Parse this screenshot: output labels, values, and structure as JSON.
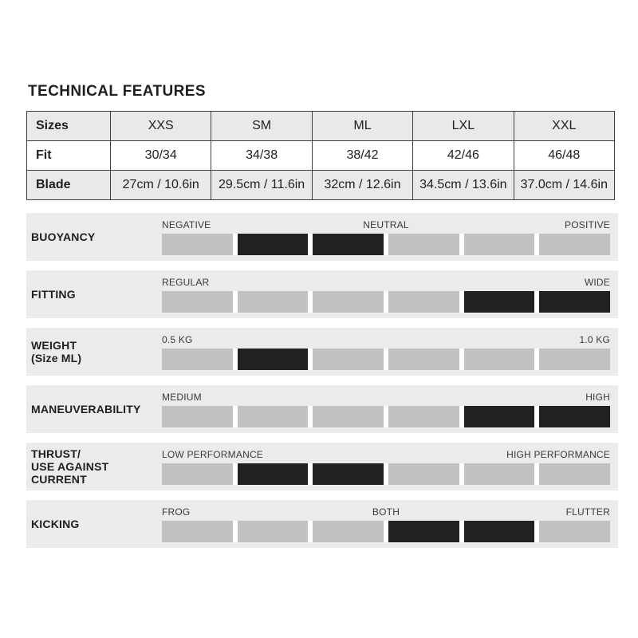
{
  "page_title": "TECHNICAL FEATURES",
  "colors": {
    "band_bg": "#ebebec",
    "table_shaded_bg": "#e9e9ea",
    "segment_gray": "#c1c1c3",
    "segment_black": "#232021",
    "border": "#3f3f41",
    "text": "#232021",
    "scale_label": "#3a3a3c"
  },
  "size_table": {
    "rows": [
      {
        "label": "Sizes",
        "shaded": true,
        "values": [
          "XXS",
          "SM",
          "ML",
          "LXL",
          "XXL"
        ]
      },
      {
        "label": "Fit",
        "shaded": false,
        "values": [
          "30/34",
          "34/38",
          "38/42",
          "42/46",
          "46/48"
        ]
      },
      {
        "label": "Blade",
        "shaded": true,
        "values": [
          "27cm / 10.6in",
          "29.5cm / 11.6in",
          "32cm / 12.6in",
          "34.5cm / 13.6in",
          "37.0cm / 14.6in"
        ]
      }
    ]
  },
  "features": [
    {
      "name_lines": [
        "BUOYANCY"
      ],
      "scale": {
        "left": "NEGATIVE",
        "center": "NEUTRAL",
        "right": "POSITIVE"
      },
      "segments_total": 6,
      "filled_segments": [
        2,
        3
      ]
    },
    {
      "name_lines": [
        "FITTING"
      ],
      "scale": {
        "left": "REGULAR",
        "center": "",
        "right": "WIDE"
      },
      "segments_total": 6,
      "filled_segments": [
        5,
        6
      ]
    },
    {
      "name_lines": [
        "WEIGHT",
        "(Size ML)"
      ],
      "scale": {
        "left": "0.5 KG",
        "center": "",
        "right": "1.0 KG"
      },
      "segments_total": 6,
      "filled_segments": [
        2
      ]
    },
    {
      "name_lines": [
        "MANEUVERABILITY"
      ],
      "scale": {
        "left": "MEDIUM",
        "center": "",
        "right": "HIGH"
      },
      "segments_total": 6,
      "filled_segments": [
        5,
        6
      ]
    },
    {
      "name_lines": [
        "THRUST/",
        "USE AGAINST",
        "CURRENT"
      ],
      "scale": {
        "left": "LOW PERFORMANCE",
        "center": "",
        "right": "HIGH PERFORMANCE"
      },
      "segments_total": 6,
      "filled_segments": [
        2,
        3
      ]
    },
    {
      "name_lines": [
        "KICKING"
      ],
      "scale": {
        "left": "FROG",
        "center": "BOTH",
        "right": "FLUTTER"
      },
      "segments_total": 6,
      "filled_segments": [
        4,
        5
      ]
    }
  ]
}
